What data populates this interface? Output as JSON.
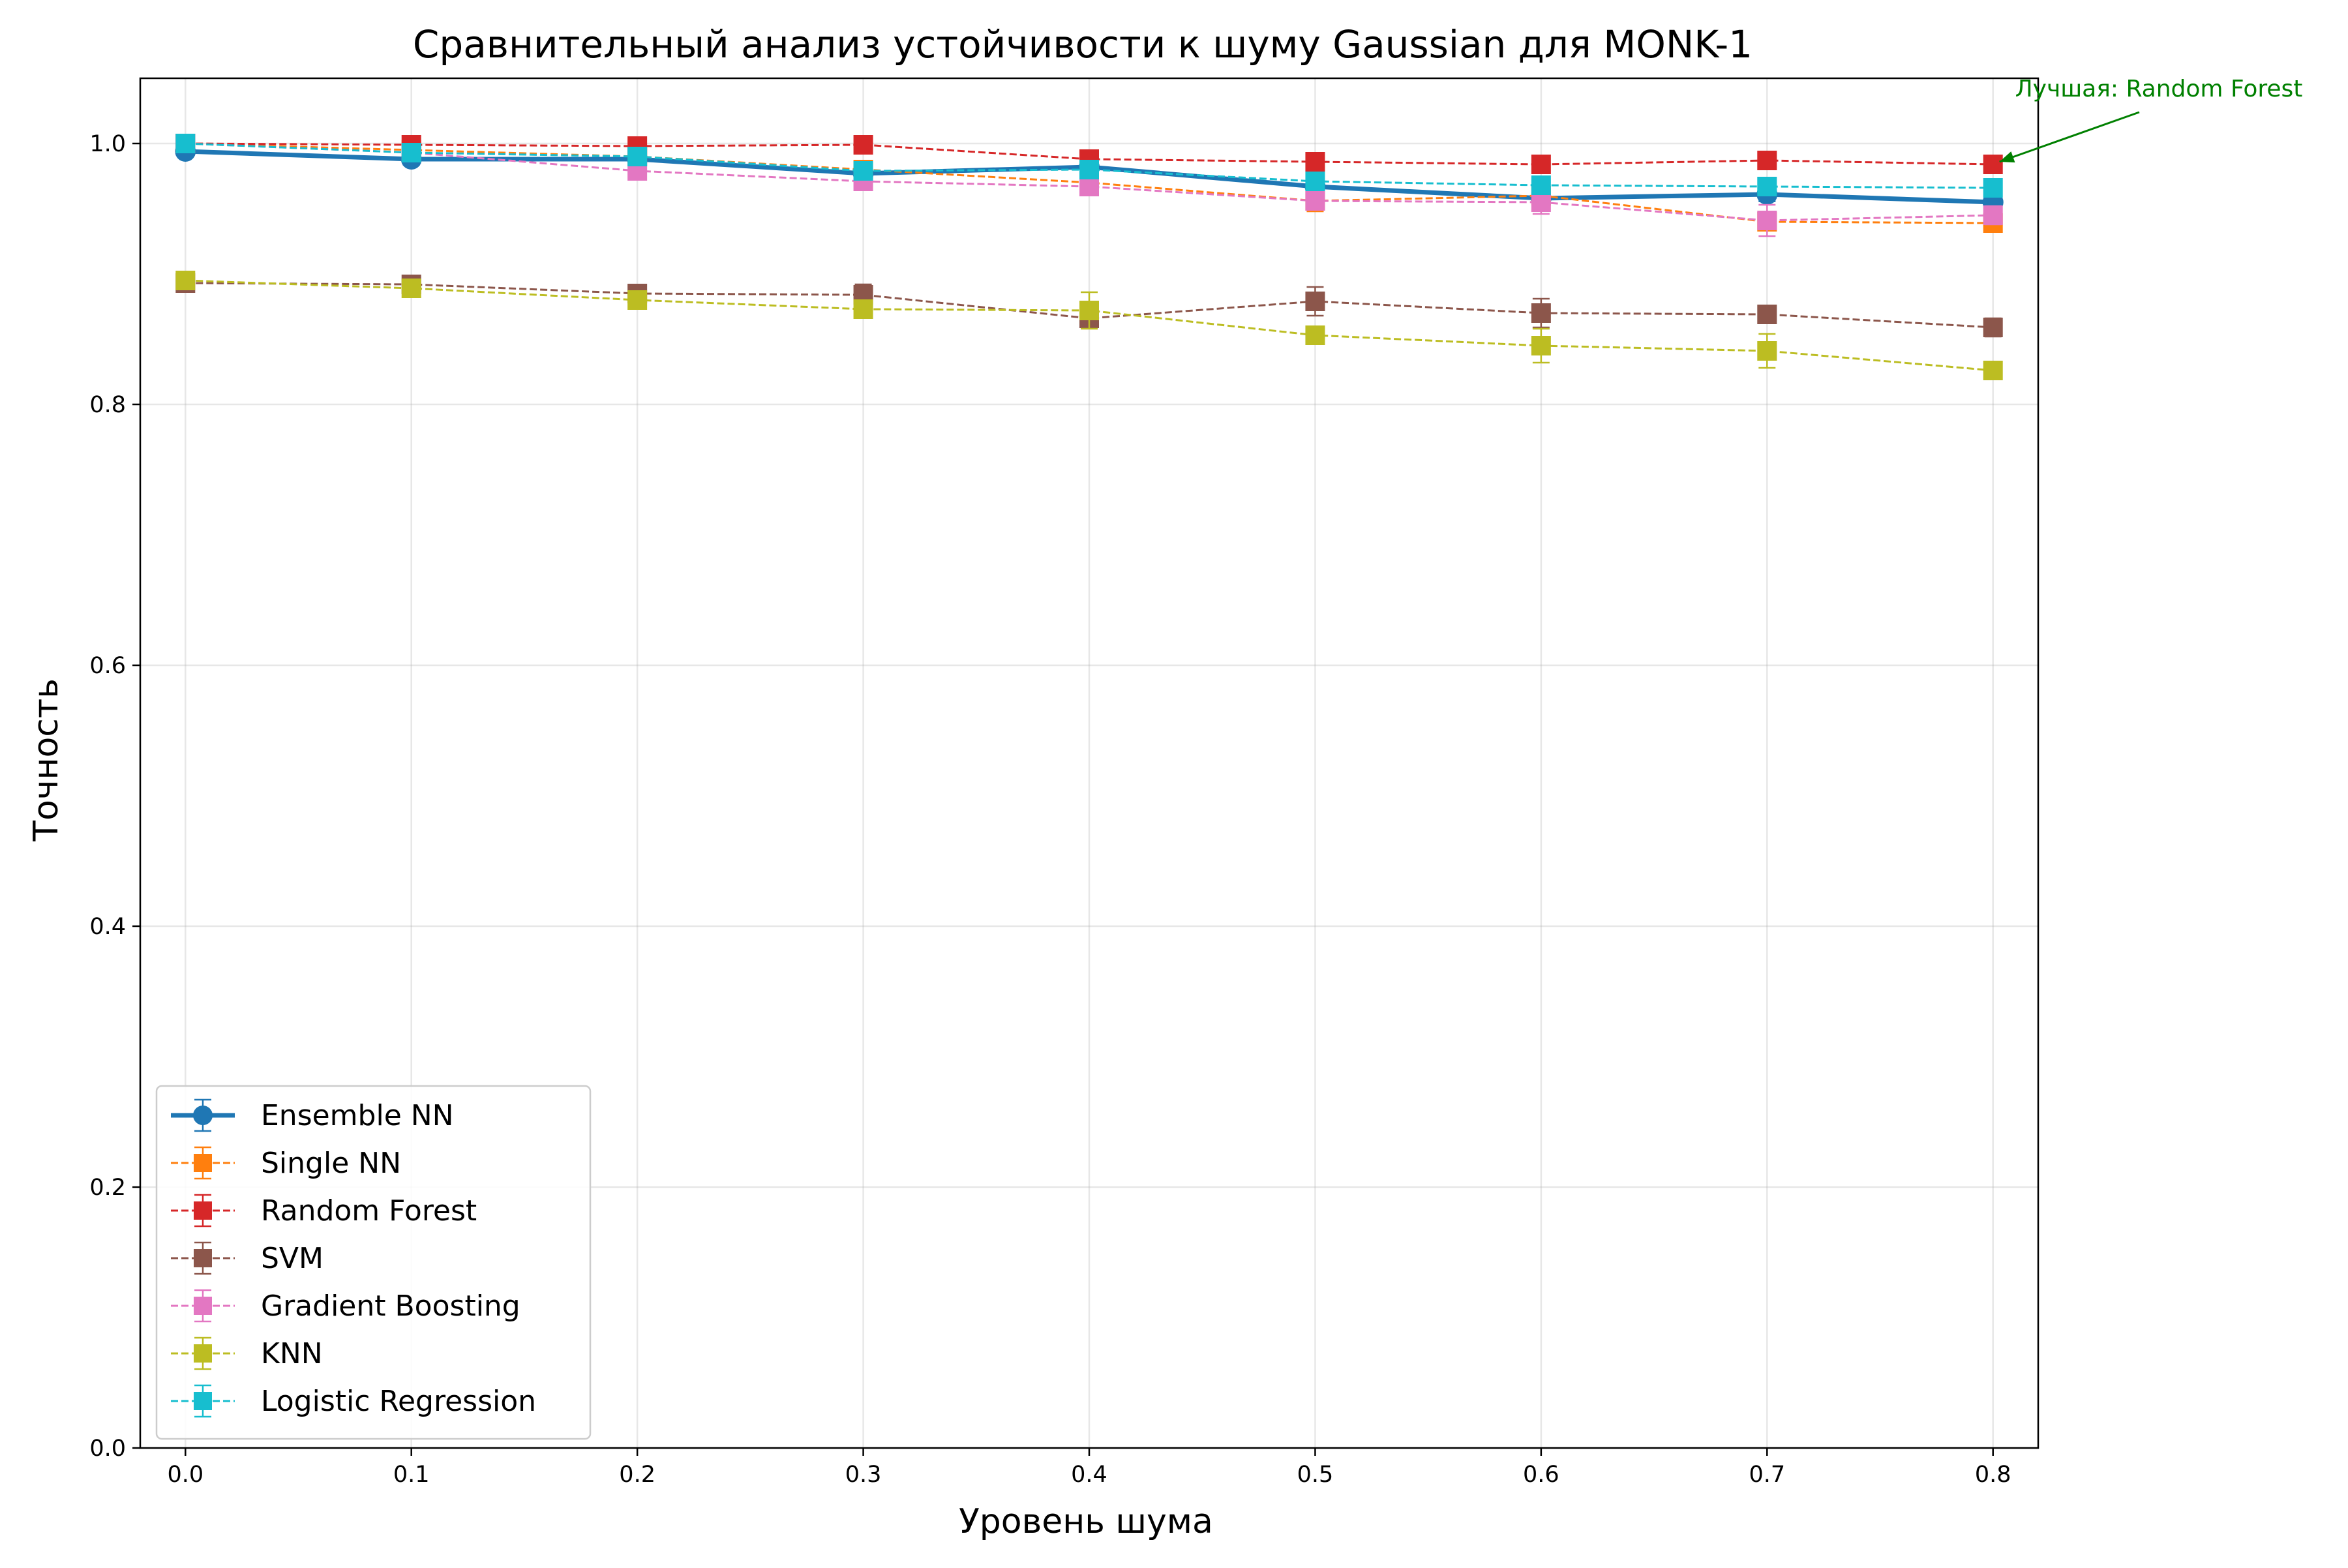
{
  "chart_data": {
    "type": "line",
    "title": "Сравнительный анализ устойчивости к шуму Gaussian для MONK-1",
    "xlabel": "Уровень шума",
    "ylabel": "Точность",
    "x": [
      0.0,
      0.1,
      0.2,
      0.3,
      0.4,
      0.5,
      0.6,
      0.7,
      0.8
    ],
    "xticks": [
      "0.0",
      "0.1",
      "0.2",
      "0.3",
      "0.4",
      "0.5",
      "0.6",
      "0.7",
      "0.8"
    ],
    "yticks": [
      "0.0",
      "0.2",
      "0.4",
      "0.6",
      "0.8",
      "1.0"
    ],
    "ytick_values": [
      0.0,
      0.2,
      0.4,
      0.6,
      0.8,
      1.0
    ],
    "xlim": [
      -0.02,
      0.82
    ],
    "ylim": [
      0.0,
      1.05
    ],
    "grid": true,
    "legend_position": "lower-left",
    "annotation": {
      "text": "Лучшая: Random Forest",
      "x": 0.8,
      "y": 0.984,
      "color": "#008000"
    },
    "series": [
      {
        "name": "Ensemble NN",
        "color": "#1f77b4",
        "marker": "circle",
        "linestyle": "solid",
        "thick": true,
        "values": [
          0.994,
          0.988,
          0.988,
          0.977,
          0.982,
          0.967,
          0.958,
          0.961,
          0.955
        ],
        "errors": [
          0.003,
          0.004,
          0.003,
          0.004,
          0.003,
          0.005,
          0.006,
          0.005,
          0.005
        ]
      },
      {
        "name": "Single NN",
        "color": "#ff7f0e",
        "marker": "square",
        "linestyle": "dashed",
        "values": [
          1.0,
          0.995,
          0.99,
          0.98,
          0.97,
          0.956,
          0.96,
          0.94,
          0.939
        ],
        "errors": [
          0.002,
          0.003,
          0.004,
          0.004,
          0.005,
          0.008,
          0.006,
          0.006,
          0.006
        ]
      },
      {
        "name": "Random Forest",
        "color": "#d62728",
        "marker": "square",
        "linestyle": "dashed",
        "values": [
          1.0,
          0.999,
          0.998,
          0.999,
          0.988,
          0.986,
          0.984,
          0.987,
          0.984
        ],
        "errors": [
          0.001,
          0.002,
          0.003,
          0.002,
          0.004,
          0.005,
          0.004,
          0.005,
          0.005
        ]
      },
      {
        "name": "SVM",
        "color": "#8c564b",
        "marker": "square",
        "linestyle": "dashed",
        "values": [
          0.893,
          0.892,
          0.885,
          0.884,
          0.866,
          0.879,
          0.87,
          0.869,
          0.859
        ],
        "errors": [
          0.004,
          0.004,
          0.005,
          0.008,
          0.005,
          0.011,
          0.011,
          0.004,
          0.007
        ]
      },
      {
        "name": "Gradient Boosting",
        "color": "#e377c2",
        "marker": "square",
        "linestyle": "dashed",
        "values": [
          1.0,
          0.993,
          0.979,
          0.971,
          0.967,
          0.956,
          0.955,
          0.941,
          0.945
        ],
        "errors": [
          0.002,
          0.003,
          0.004,
          0.006,
          0.005,
          0.004,
          0.009,
          0.012,
          0.007
        ]
      },
      {
        "name": "KNN",
        "color": "#bcbd22",
        "marker": "square",
        "linestyle": "dashed",
        "values": [
          0.895,
          0.889,
          0.88,
          0.873,
          0.872,
          0.853,
          0.845,
          0.841,
          0.826
        ],
        "errors": [
          0.003,
          0.003,
          0.005,
          0.005,
          0.014,
          0.004,
          0.013,
          0.013,
          0.004
        ]
      },
      {
        "name": "Logistic Regression",
        "color": "#17becf",
        "marker": "square",
        "linestyle": "dashed",
        "values": [
          1.0,
          0.993,
          0.99,
          0.979,
          0.98,
          0.971,
          0.968,
          0.967,
          0.966
        ],
        "errors": [
          0.001,
          0.002,
          0.003,
          0.004,
          0.003,
          0.004,
          0.003,
          0.003,
          0.003
        ]
      }
    ]
  }
}
